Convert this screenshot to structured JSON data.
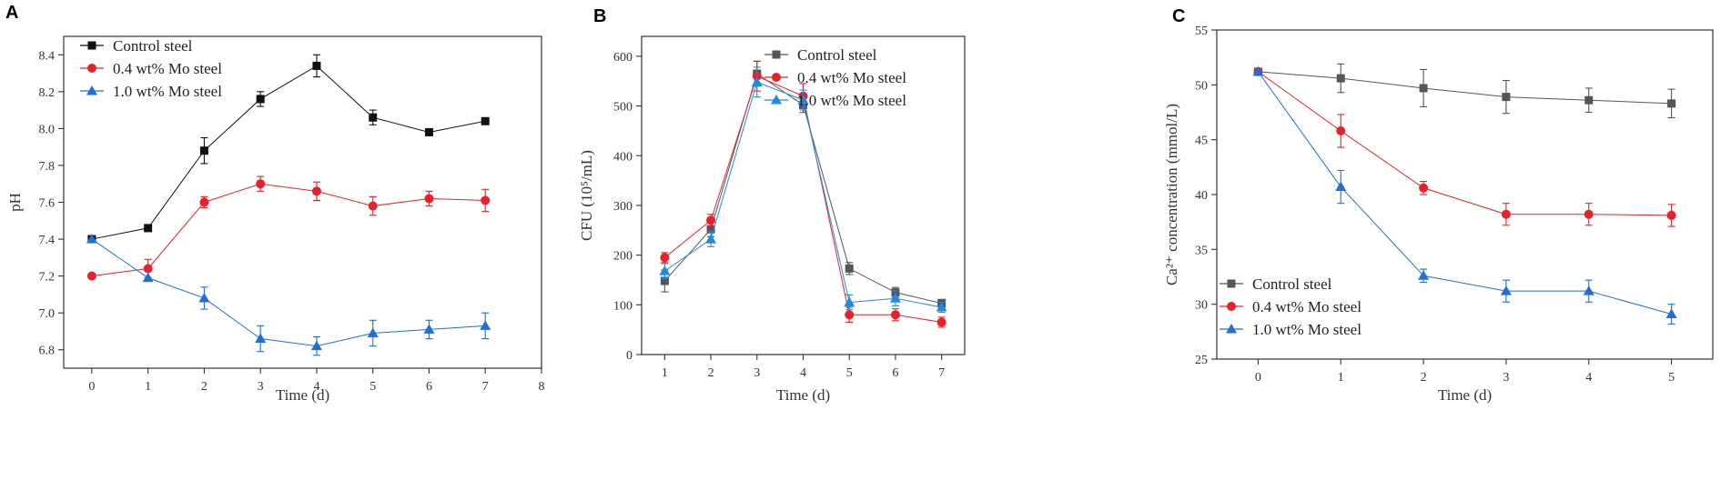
{
  "chart_data": [
    {
      "panel": "A",
      "type": "line",
      "xlabel": "Time (d)",
      "ylabel": "pH",
      "xlim": [
        -0.5,
        8
      ],
      "ylim": [
        6.7,
        8.5
      ],
      "xticks": [
        "0",
        "1",
        "2",
        "3",
        "4",
        "5",
        "6",
        "7",
        "8"
      ],
      "yticks": [
        "6.8",
        "7.0",
        "7.2",
        "7.4",
        "7.6",
        "7.8",
        "8.0",
        "8.2",
        "8.4"
      ],
      "legend_position": "top-left",
      "series": [
        {
          "name": "Control steel",
          "color": "#111111",
          "marker": "square",
          "x": [
            0,
            1,
            2,
            3,
            4,
            5,
            6,
            7
          ],
          "values": [
            7.4,
            7.46,
            7.88,
            8.16,
            8.34,
            8.06,
            7.98,
            8.04
          ],
          "errors": [
            0,
            0,
            0.07,
            0.04,
            0.06,
            0.04,
            0,
            0
          ]
        },
        {
          "name": "0.4 wt% Mo steel",
          "color": "#e8202a",
          "marker": "circle",
          "x": [
            0,
            1,
            2,
            3,
            4,
            5,
            6,
            7
          ],
          "values": [
            7.2,
            7.24,
            7.6,
            7.7,
            7.66,
            7.58,
            7.62,
            7.61
          ],
          "errors": [
            0,
            0.05,
            0.03,
            0.04,
            0.05,
            0.05,
            0.04,
            0.06
          ]
        },
        {
          "name": "1.0 wt% Mo steel",
          "color": "#1f6fd6",
          "marker": "triangle",
          "x": [
            0,
            1,
            2,
            3,
            4,
            5,
            6,
            7
          ],
          "values": [
            7.4,
            7.19,
            7.08,
            6.86,
            6.82,
            6.89,
            6.91,
            6.93
          ],
          "errors": [
            0,
            0,
            0.06,
            0.07,
            0.05,
            0.07,
            0.05,
            0.07
          ]
        }
      ]
    },
    {
      "panel": "B",
      "type": "line",
      "xlabel": "Time (d)",
      "ylabel": "CFU (10⁵/mL)",
      "xlim": [
        0.5,
        7.5
      ],
      "ylim": [
        0,
        640
      ],
      "xticks": [
        "1",
        "2",
        "3",
        "4",
        "5",
        "6",
        "7"
      ],
      "yticks": [
        "0",
        "100",
        "200",
        "300",
        "400",
        "500",
        "600"
      ],
      "legend_position": "top-right",
      "series": [
        {
          "name": "Control steel",
          "color": "#555555",
          "marker": "square",
          "x": [
            1,
            2,
            3,
            4,
            5,
            6,
            7
          ],
          "values": [
            148,
            252,
            565,
            502,
            173,
            125,
            103
          ],
          "errors": [
            22,
            15,
            25,
            15,
            12,
            10,
            8
          ]
        },
        {
          "name": "0.4 wt% Mo steel",
          "color": "#e8202a",
          "marker": "circle",
          "x": [
            1,
            2,
            3,
            4,
            5,
            6,
            7
          ],
          "values": [
            195,
            270,
            560,
            520,
            80,
            80,
            65
          ],
          "errors": [
            10,
            12,
            30,
            25,
            15,
            12,
            10
          ]
        },
        {
          "name": "1.0 wt% Mo steel",
          "color": "#1f8ae0",
          "marker": "triangle",
          "x": [
            1,
            2,
            3,
            4,
            5,
            6,
            7
          ],
          "values": [
            168,
            232,
            548,
            512,
            105,
            113,
            95
          ],
          "errors": [
            15,
            15,
            30,
            20,
            15,
            15,
            10
          ]
        }
      ]
    },
    {
      "panel": "C",
      "type": "line",
      "xlabel": "Time (d)",
      "ylabel": "Ca²⁺ concentration (mmol/L)",
      "xlim": [
        -0.5,
        5.5
      ],
      "ylim": [
        25,
        55
      ],
      "xticks": [
        "0",
        "1",
        "2",
        "3",
        "4",
        "5"
      ],
      "yticks": [
        "25",
        "30",
        "35",
        "40",
        "45",
        "50",
        "55"
      ],
      "legend_position": "bottom-left",
      "series": [
        {
          "name": "Control steel",
          "color": "#555555",
          "marker": "square",
          "x": [
            0,
            1,
            2,
            3,
            4,
            5
          ],
          "values": [
            51.2,
            50.6,
            49.7,
            48.9,
            48.6,
            48.3
          ],
          "errors": [
            0,
            1.3,
            1.7,
            1.5,
            1.1,
            1.3
          ]
        },
        {
          "name": "0.4 wt% Mo steel",
          "color": "#e8202a",
          "marker": "circle",
          "x": [
            0,
            1,
            2,
            3,
            4,
            5
          ],
          "values": [
            51.2,
            45.8,
            40.6,
            38.2,
            38.2,
            38.1
          ],
          "errors": [
            0,
            1.5,
            0.6,
            1.0,
            1.0,
            1.0
          ]
        },
        {
          "name": "1.0 wt% Mo steel",
          "color": "#1f6fd6",
          "marker": "triangle",
          "x": [
            0,
            1,
            2,
            3,
            4,
            5
          ],
          "values": [
            51.2,
            40.7,
            32.6,
            31.2,
            31.2,
            29.1
          ],
          "errors": [
            0,
            1.5,
            0.6,
            1.0,
            1.0,
            0.9
          ]
        }
      ]
    }
  ]
}
